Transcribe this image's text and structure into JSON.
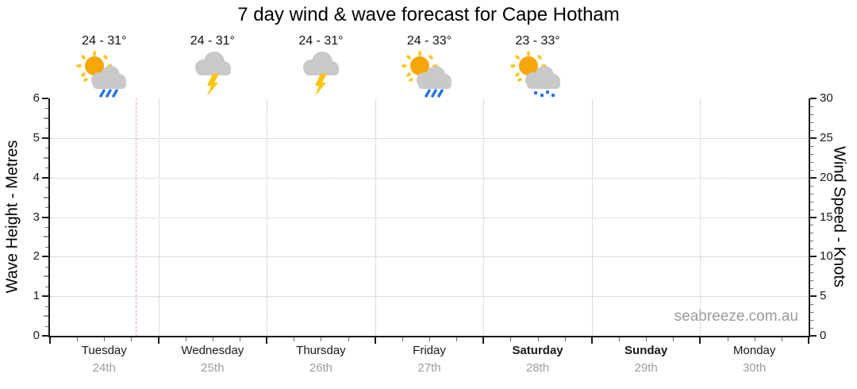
{
  "title": "7 day wind & wave forecast for Cape Hotham",
  "watermark": "seabreeze.com.au",
  "days": [
    {
      "name": "Tuesday",
      "date": "24th",
      "bold": false,
      "temp": "24 - 31°",
      "icon": "sun-cloud-rain"
    },
    {
      "name": "Wednesday",
      "date": "25th",
      "bold": false,
      "temp": "24 - 31°",
      "icon": "cloud-lightning"
    },
    {
      "name": "Thursday",
      "date": "26th",
      "bold": false,
      "temp": "24 - 31°",
      "icon": "cloud-lightning"
    },
    {
      "name": "Friday",
      "date": "27th",
      "bold": false,
      "temp": "24 - 33°",
      "icon": "sun-cloud-rain"
    },
    {
      "name": "Saturday",
      "date": "28th",
      "bold": true,
      "temp": "23 - 33°",
      "icon": "sun-cloud-drizzle"
    },
    {
      "name": "Sunday",
      "date": "29th",
      "bold": true,
      "temp": null,
      "icon": null
    },
    {
      "name": "Monday",
      "date": "30th",
      "bold": false,
      "temp": null,
      "icon": null
    }
  ],
  "chart_data": {
    "type": "line",
    "title": "7 day wind & wave forecast for Cape Hotham",
    "x_categories": [
      "Tuesday 24th",
      "Wednesday 25th",
      "Thursday 26th",
      "Friday 27th",
      "Saturday 28th",
      "Sunday 29th",
      "Monday 30th"
    ],
    "y_left": {
      "label": "Wave Height - Metres",
      "min": 0,
      "max": 6,
      "ticks": [
        0,
        1,
        2,
        3,
        4,
        5,
        6
      ],
      "minor_step": 0.25
    },
    "y_right": {
      "label": "Wind Speed - Knots",
      "min": 0,
      "max": 30,
      "ticks": [
        0,
        5,
        10,
        15,
        20,
        25,
        30
      ],
      "minor_step": 1
    },
    "series": [],
    "grid": true,
    "legend": false,
    "now_marker": {
      "day_index": 0,
      "day_fraction": 0.79,
      "style": "dashed",
      "color": "#f0a3a3"
    }
  },
  "colors": {
    "grid": "#bdbdbd",
    "axis": "#1a1a1a",
    "minor_tick": "#6e6e6e",
    "half_tick": "#8f8f8f",
    "date_text": "#9b9b9b",
    "watermark": "#9b9b9b",
    "now_line": "#f0a3a3",
    "sun": "#f7a60a",
    "sun_rays": "#fec40d",
    "cloud": "#c9c9c9",
    "rain": "#2273e6",
    "lightning": "#fec40d"
  }
}
